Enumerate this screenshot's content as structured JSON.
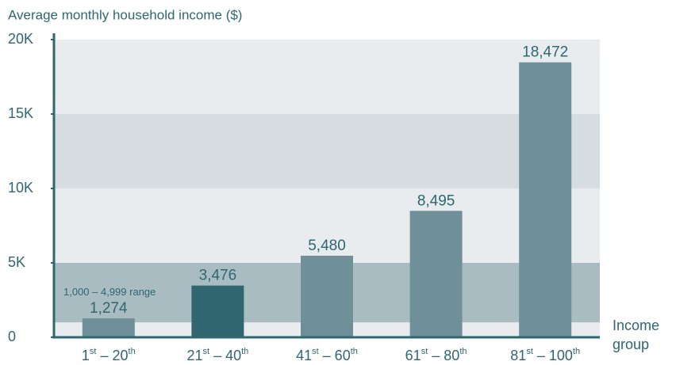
{
  "chart_data": {
    "type": "bar",
    "title": "Average monthly household income ($)",
    "xlabel": "Income group",
    "categories": [
      "1st – 20th",
      "21st – 40th",
      "41st – 60th",
      "61st – 80th",
      "81st – 100th"
    ],
    "values": [
      1274,
      3476,
      5480,
      8495,
      18472
    ],
    "value_labels": [
      "1,274",
      "3,476",
      "5,480",
      "8,495",
      "18,472"
    ],
    "colors": [
      "#6f8f99",
      "#2f6670",
      "#6f8f99",
      "#6f8f99",
      "#6f8f99"
    ],
    "ylim": [
      0,
      20000
    ],
    "yticks": [
      0,
      {
        "value": 5000,
        "label": "5K"
      },
      {
        "value": 10000,
        "label": "10K"
      },
      {
        "value": 15000,
        "label": "15K"
      },
      {
        "value": 20000,
        "label": "20K"
      }
    ],
    "bands": [
      {
        "from": 0,
        "to": 1000,
        "color": "#e8ecee"
      },
      {
        "from": 1000,
        "to": 5000,
        "color": "#a9bcc2"
      },
      {
        "from": 5000,
        "to": 10000,
        "color": "#e8ecee"
      },
      {
        "from": 10000,
        "to": 15000,
        "color": "#d5dde0"
      },
      {
        "from": 15000,
        "to": 20000,
        "color": "#e8ecee"
      }
    ],
    "annotation": {
      "text": "1,000 – 4,999 range",
      "value": 3000
    }
  }
}
